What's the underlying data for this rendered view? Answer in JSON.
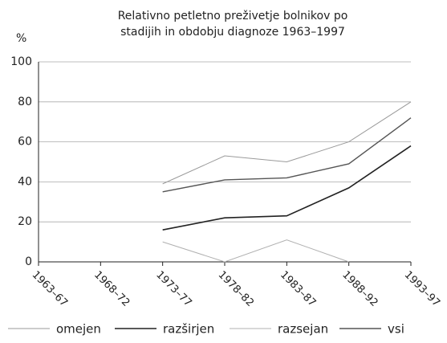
{
  "chart_data": {
    "type": "line",
    "title": [
      "Relativno petletno preživetje bolnikov po",
      "stadijih in obdobju diagnoze 1963–1997"
    ],
    "y_label": "%",
    "categories": [
      "1963–67",
      "1968–72",
      "1973–77",
      "1978–82",
      "1983–87",
      "1988–92",
      "1993–97"
    ],
    "series": [
      {
        "name": "omejen",
        "color": "#9a9a9a",
        "width": 1,
        "values": [
          null,
          null,
          39,
          53,
          50,
          60,
          80
        ]
      },
      {
        "name": "razširjen",
        "color": "#222222",
        "width": 1.6,
        "values": [
          null,
          null,
          16,
          22,
          23,
          37,
          58
        ]
      },
      {
        "name": "razsejan",
        "color": "#b0b0b0",
        "width": 1,
        "values": [
          null,
          null,
          10,
          0,
          11,
          0,
          null
        ]
      },
      {
        "name": "vsi",
        "color": "#555555",
        "width": 1.4,
        "values": [
          null,
          null,
          35,
          41,
          42,
          49,
          72
        ]
      }
    ],
    "ylim": [
      0,
      100
    ],
    "yticks": [
      0,
      20,
      40,
      60,
      80,
      100
    ],
    "grid": true
  }
}
